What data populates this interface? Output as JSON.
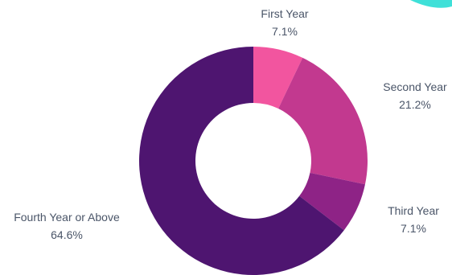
{
  "colors": {
    "teal_accent": "#3fe0d8",
    "first_year": "#f2559f",
    "second_year": "#c2398f",
    "third_year": "#8e2386",
    "fourth_year": "#4e1570",
    "label_text": "#4a5568"
  },
  "chart_data": {
    "type": "pie",
    "title": "",
    "slices": [
      {
        "label": "First Year",
        "value": 7.1,
        "display": "7.1%",
        "color": "#f2559f"
      },
      {
        "label": "Second Year",
        "value": 21.2,
        "display": "21.2%",
        "color": "#c2398f"
      },
      {
        "label": "Third Year",
        "value": 7.1,
        "display": "7.1%",
        "color": "#8e2386"
      },
      {
        "label": "Fourth Year or Above",
        "value": 64.6,
        "display": "64.6%",
        "color": "#4e1570"
      }
    ]
  }
}
